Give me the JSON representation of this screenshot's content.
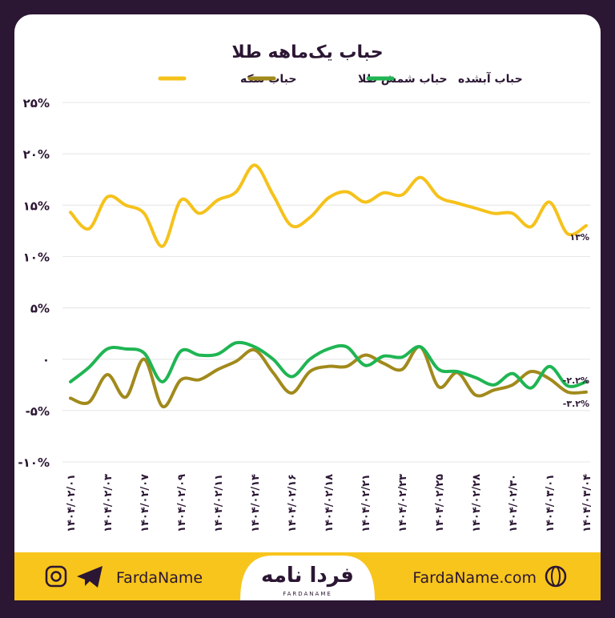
{
  "chart_data": {
    "type": "line",
    "title": "حباب یک‌ماهه طلا",
    "categories": [
      "۱۴۰۴/۰۲/۰۱",
      null,
      "۱۴۰۴/۰۲/۰۳",
      null,
      "۱۴۰۴/۰۲/۰۷",
      null,
      "۱۴۰۴/۰۲/۰۹",
      null,
      "۱۴۰۴/۰۲/۱۱",
      null,
      "۱۴۰۴/۰۲/۱۴",
      null,
      "۱۴۰۴/۰۲/۱۶",
      null,
      "۱۴۰۴/۰۲/۱۸",
      null,
      "۱۴۰۴/۰۲/۲۱",
      null,
      "۱۴۰۴/۰۲/۲۳",
      null,
      "۱۴۰۴/۰۲/۲۵",
      null,
      "۱۴۰۴/۰۲/۲۸",
      null,
      "۱۴۰۴/۰۲/۳۰",
      null,
      "۱۴۰۴/۰۳/۰۱",
      null,
      "۱۴۰۴/۰۳/۰۴"
    ],
    "series": [
      {
        "name": "حباب سکه",
        "color": "#f5c21b",
        "values": [
          14.3,
          12.7,
          15.8,
          15,
          14.2,
          11,
          15.5,
          14.2,
          15.5,
          16.3,
          18.9,
          16,
          13,
          13.8,
          15.7,
          16.3,
          15.3,
          16.2,
          16,
          17.7,
          15.8,
          15.2,
          14.7,
          14.2,
          14.2,
          12.9,
          15.3,
          12.2,
          13
        ],
        "value_labels": [
          null,
          null,
          null,
          null,
          null,
          null,
          null,
          null,
          null,
          null,
          null,
          null,
          null,
          null,
          null,
          null,
          null,
          null,
          null,
          null,
          null,
          null,
          null,
          null,
          null,
          null,
          null,
          null,
          "۱۳%"
        ]
      },
      {
        "name": "حباب شمش طلا",
        "color": "#a18a1c",
        "values": [
          -3.8,
          -4.2,
          -1.5,
          -3.7,
          0,
          -4.6,
          -2,
          -2,
          -1,
          -0.2,
          0.9,
          -1.3,
          -3.3,
          -1.2,
          -0.7,
          -0.7,
          0.4,
          -0.4,
          -1,
          1.2,
          -2.7,
          -1.3,
          -3.5,
          -3,
          -2.5,
          -1.2,
          -1.9,
          -3.2,
          -3.2
        ],
        "value_labels": [
          null,
          null,
          null,
          null,
          null,
          null,
          null,
          null,
          null,
          null,
          null,
          null,
          null,
          null,
          null,
          null,
          null,
          null,
          null,
          null,
          null,
          null,
          null,
          null,
          null,
          null,
          null,
          null,
          "-۳.۲%"
        ]
      },
      {
        "name": "حباب آبشده",
        "color": "#1fb553",
        "values": [
          -2.2,
          -0.8,
          1,
          1,
          0.6,
          -2.2,
          0.8,
          0.4,
          0.5,
          1.6,
          1.2,
          0,
          -1.7,
          0,
          1,
          1.2,
          -0.6,
          0.3,
          0.2,
          1.2,
          -1,
          -1.2,
          -1.8,
          -2.5,
          -1.4,
          -2.8,
          -0.7,
          -2.6,
          -2.2
        ],
        "value_labels": [
          null,
          null,
          null,
          null,
          null,
          null,
          null,
          null,
          null,
          null,
          null,
          null,
          null,
          null,
          null,
          null,
          null,
          null,
          null,
          null,
          null,
          null,
          null,
          null,
          null,
          null,
          null,
          null,
          "-۲.۲%"
        ]
      }
    ],
    "ylim": [
      -10,
      25
    ],
    "yticks": [
      {
        "value": -10,
        "label": "-۱۰%"
      },
      {
        "value": -5,
        "label": "-۵%"
      },
      {
        "value": 0,
        "label": "۰"
      },
      {
        "value": 5,
        "label": "۵%"
      },
      {
        "value": 10,
        "label": "۱۰%"
      },
      {
        "value": 15,
        "label": "۱۵%"
      },
      {
        "value": 20,
        "label": "۲۰%"
      },
      {
        "value": 25,
        "label": "۲۵%"
      }
    ],
    "grid": true
  },
  "footer": {
    "handle": "FardaName",
    "logo": "فردا نامه",
    "logo_sub": "FARDANAME",
    "site": "FardaName.com"
  }
}
